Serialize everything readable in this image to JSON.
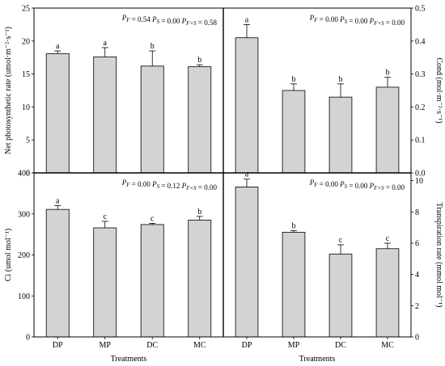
{
  "chart_data": [
    {
      "type": "bar",
      "panel": "top-left",
      "ylabel": "Net photosynthetic rate (umol·m⁻²·s⁻¹)",
      "xlabel": "",
      "ylim": [
        0,
        25
      ],
      "yticks": [
        0,
        5,
        10,
        15,
        20,
        25
      ],
      "categories": [
        "DP",
        "MP",
        "DC",
        "MC"
      ],
      "values": [
        18.1,
        17.6,
        16.2,
        16.1
      ],
      "errors": [
        0.4,
        1.4,
        2.3,
        0.3
      ],
      "letters": [
        "a",
        "a",
        "b",
        "b"
      ],
      "stats": "P_F = 0.54  P_S = 0.00  P_F×S = 0.58"
    },
    {
      "type": "bar",
      "panel": "top-right",
      "ylabel": "Cond (mol·m⁻²·s⁻¹)",
      "xlabel": "",
      "ylim": [
        0,
        0.5
      ],
      "yticks": [
        "0.0",
        "0.1",
        "0.2",
        "0.3",
        "0.4",
        "0.5"
      ],
      "categories": [
        "DP",
        "MP",
        "DC",
        "MC"
      ],
      "values": [
        0.41,
        0.25,
        0.23,
        0.26
      ],
      "errors": [
        0.04,
        0.02,
        0.04,
        0.03
      ],
      "letters": [
        "a",
        "b",
        "b",
        "b"
      ],
      "stats": "P_F = 0.00  P_S = 0.00  P_F×S = 0.00"
    },
    {
      "type": "bar",
      "panel": "bottom-left",
      "ylabel": "Ci (umol mol⁻¹)",
      "xlabel": "Treatments",
      "ylim": [
        0,
        400
      ],
      "yticks": [
        0,
        100,
        200,
        300,
        400
      ],
      "categories": [
        "DP",
        "MP",
        "DC",
        "MC"
      ],
      "values": [
        311,
        266,
        274,
        285
      ],
      "errors": [
        9,
        16,
        3,
        9
      ],
      "letters": [
        "a",
        "c",
        "c",
        "b"
      ],
      "stats": "P_F = 0.00  P_S = 0.12  P_F×S = 0.00"
    },
    {
      "type": "bar",
      "panel": "bottom-right",
      "ylabel": "Transpiration rate (mmol mol⁻¹)",
      "xlabel": "Treatments",
      "ylim": [
        0,
        10.5
      ],
      "yticks": [
        0,
        2,
        4,
        6,
        8,
        10
      ],
      "categories": [
        "DP",
        "MP",
        "DC",
        "MC"
      ],
      "values": [
        9.6,
        6.7,
        5.3,
        5.65
      ],
      "errors": [
        0.5,
        0.1,
        0.6,
        0.35
      ],
      "letters": [
        "a",
        "b",
        "c",
        "c"
      ],
      "stats": "P_F = 0.00  P_S = 0.00  P_F×S = 0.00"
    }
  ]
}
